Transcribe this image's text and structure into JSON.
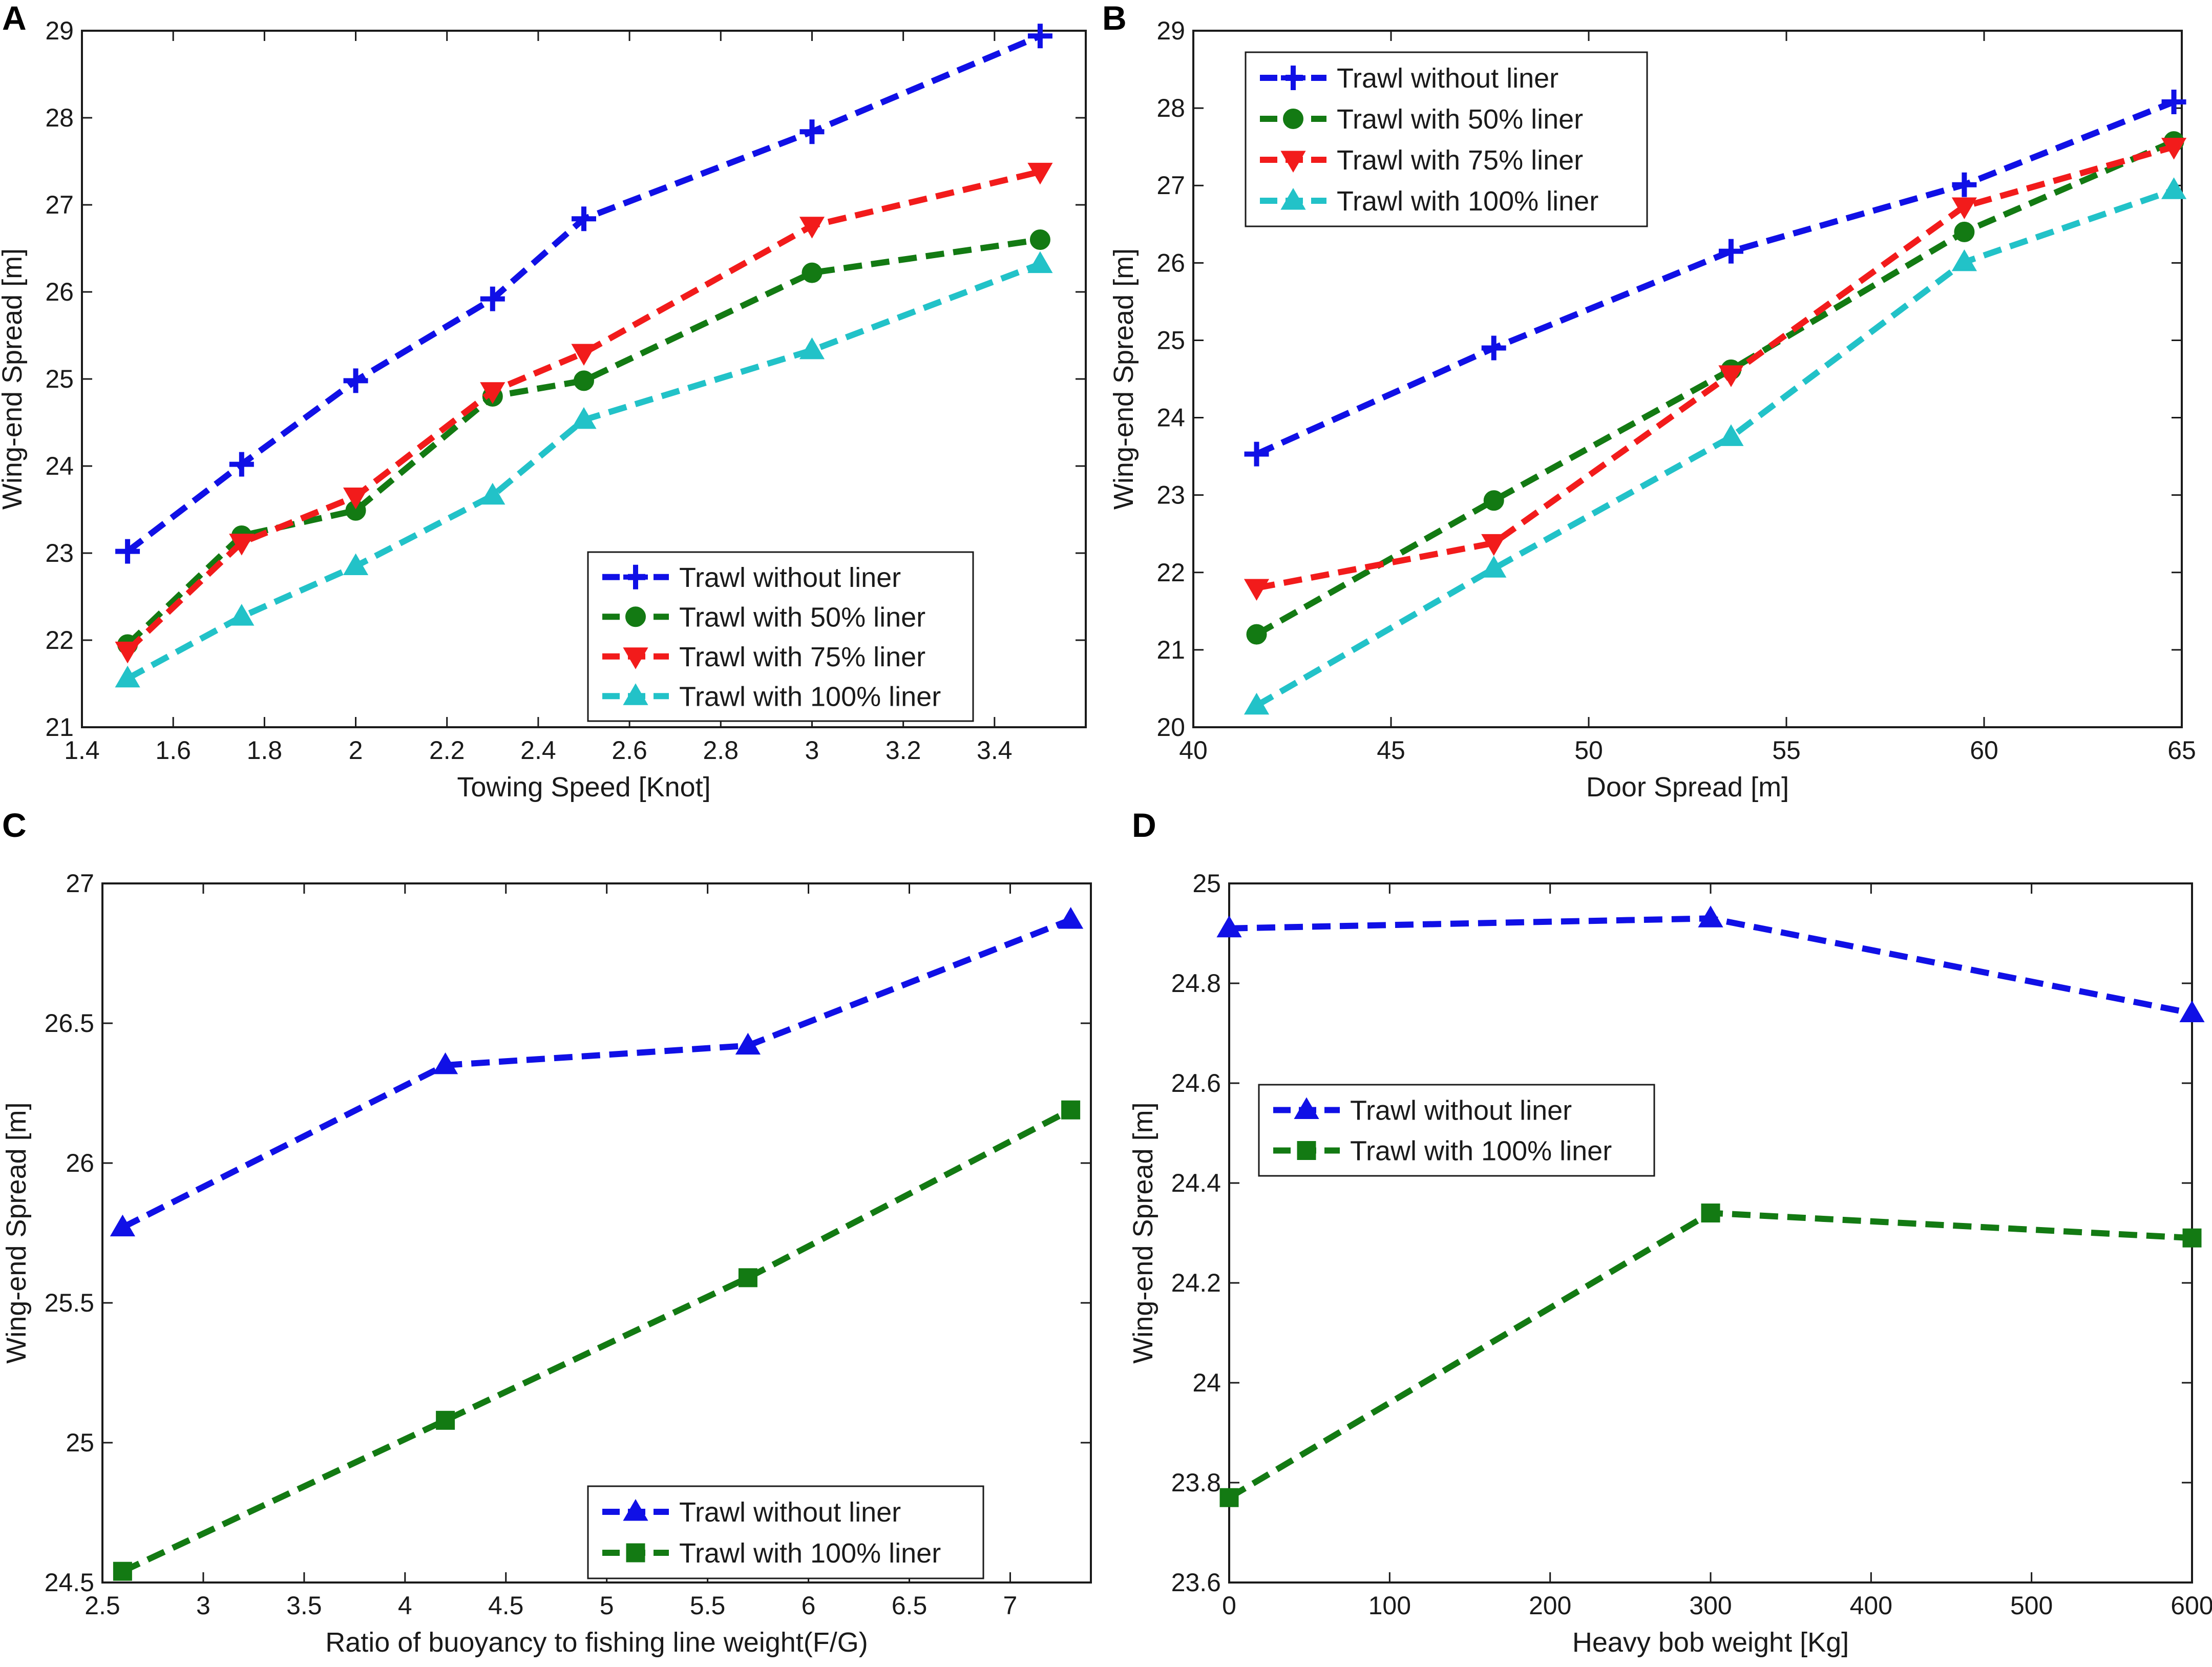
{
  "colors": {
    "blue": "#1010e6",
    "green": "#137a13",
    "red": "#f21b1b",
    "cyan": "#22c2c8",
    "axis": "#1a1a1a",
    "text": "#1a1a1a"
  },
  "chart_data": [
    {
      "panel": "A",
      "type": "line",
      "xlabel": "Towing Speed [Knot]",
      "ylabel": "Wing-end Spread [m]",
      "xlim": [
        1.4,
        3.6
      ],
      "ylim": [
        21,
        29
      ],
      "xticks": [
        "1.4",
        "1.6",
        "1.8",
        "2",
        "2.2",
        "2.4",
        "2.6",
        "2.8",
        "3",
        "3.2",
        "3.4"
      ],
      "yticks": [
        "21",
        "22",
        "23",
        "24",
        "25",
        "26",
        "27",
        "28",
        "29"
      ],
      "legend_position": "bottom-right",
      "series": [
        {
          "name": "Trawl without liner",
          "color": "blue",
          "marker": "plus",
          "x": [
            1.5,
            1.75,
            2,
            2.3,
            2.5,
            3,
            3.5
          ],
          "y": [
            23.02,
            24.02,
            24.98,
            25.92,
            26.84,
            27.84,
            28.94
          ]
        },
        {
          "name": "Trawl with 50% liner",
          "color": "green",
          "marker": "circle",
          "x": [
            1.5,
            1.75,
            2,
            2.3,
            2.5,
            3,
            3.5
          ],
          "y": [
            21.95,
            23.2,
            23.49,
            24.8,
            24.98,
            26.22,
            26.6
          ]
        },
        {
          "name": "Trawl with 75% liner",
          "color": "red",
          "marker": "triangle-down",
          "x": [
            1.5,
            1.75,
            2,
            2.3,
            2.5,
            3,
            3.5
          ],
          "y": [
            21.88,
            23.12,
            23.65,
            24.86,
            25.3,
            26.76,
            27.38
          ]
        },
        {
          "name": "Trawl with 100% liner",
          "color": "cyan",
          "marker": "triangle-up",
          "x": [
            1.5,
            1.75,
            2,
            2.3,
            2.5,
            3,
            3.5
          ],
          "y": [
            21.56,
            22.27,
            22.85,
            23.66,
            24.53,
            25.33,
            26.32
          ]
        }
      ]
    },
    {
      "panel": "B",
      "type": "line",
      "xlabel": "Door Spread [m]",
      "ylabel": "Wing-end Spread [m]",
      "xlim": [
        40,
        65
      ],
      "ylim": [
        20,
        29
      ],
      "xticks": [
        "40",
        "45",
        "50",
        "55",
        "60",
        "65"
      ],
      "yticks": [
        "20",
        "21",
        "22",
        "23",
        "24",
        "25",
        "26",
        "27",
        "28",
        "29"
      ],
      "legend_position": "top-left",
      "series": [
        {
          "name": "Trawl without liner",
          "color": "blue",
          "marker": "plus",
          "x": [
            41.6,
            47.6,
            53.6,
            59.5,
            64.8
          ],
          "y": [
            23.53,
            24.9,
            26.15,
            27.01,
            28.08
          ]
        },
        {
          "name": "Trawl with 50% liner",
          "color": "green",
          "marker": "circle",
          "x": [
            41.6,
            47.6,
            53.6,
            59.5,
            64.8
          ],
          "y": [
            21.2,
            22.93,
            24.62,
            26.4,
            27.57
          ]
        },
        {
          "name": "Trawl with 75% liner",
          "color": "red",
          "marker": "triangle-down",
          "x": [
            41.6,
            47.6,
            53.6,
            59.5,
            64.8
          ],
          "y": [
            21.8,
            22.38,
            24.56,
            26.73,
            27.5
          ]
        },
        {
          "name": "Trawl with 100% liner",
          "color": "cyan",
          "marker": "triangle-up",
          "x": [
            41.6,
            47.6,
            53.6,
            59.5,
            64.8
          ],
          "y": [
            20.28,
            22.05,
            23.75,
            26.01,
            26.94
          ]
        }
      ]
    },
    {
      "panel": "C",
      "type": "line",
      "xlabel": "Ratio of buoyancy to fishing line weight(F/G)",
      "ylabel": "Wing-end Spread [m]",
      "xlim": [
        2.5,
        7.4
      ],
      "ylim": [
        24.5,
        27
      ],
      "xticks": [
        "2.5",
        "3",
        "3.5",
        "4",
        "4.5",
        "5",
        "5.5",
        "6",
        "6.5",
        "7"
      ],
      "yticks": [
        "24.5",
        "25",
        "25.5",
        "26",
        "26.5",
        "27"
      ],
      "legend_position": "bottom-right",
      "series": [
        {
          "name": "Trawl without liner",
          "color": "blue",
          "marker": "triangle-up",
          "x": [
            2.6,
            4.2,
            5.7,
            7.3
          ],
          "y": [
            25.77,
            26.35,
            26.42,
            26.87
          ]
        },
        {
          "name": "Trawl with 100% liner",
          "color": "green",
          "marker": "square",
          "x": [
            2.6,
            4.2,
            5.7,
            7.3
          ],
          "y": [
            24.54,
            25.08,
            25.59,
            26.19
          ]
        }
      ]
    },
    {
      "panel": "D",
      "type": "line",
      "xlabel": "Heavy bob weight [Kg]",
      "ylabel": "Wing-end Spread [m]",
      "xlim": [
        0,
        600
      ],
      "ylim": [
        23.6,
        25
      ],
      "xticks": [
        "0",
        "100",
        "200",
        "300",
        "400",
        "500",
        "600"
      ],
      "yticks": [
        "23.6",
        "23.8",
        "24",
        "24.2",
        "24.4",
        "24.6",
        "24.8",
        "25"
      ],
      "legend_position": "middle-left",
      "series": [
        {
          "name": "Trawl without liner",
          "color": "blue",
          "marker": "triangle-up",
          "x": [
            0,
            300,
            600
          ],
          "y": [
            24.91,
            24.93,
            24.74
          ]
        },
        {
          "name": "Trawl with 100% liner",
          "color": "green",
          "marker": "square",
          "x": [
            0,
            300,
            600
          ],
          "y": [
            23.77,
            24.34,
            24.29
          ]
        }
      ]
    }
  ]
}
